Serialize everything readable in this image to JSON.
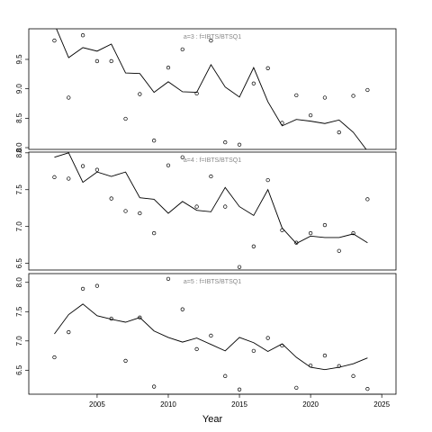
{
  "chart_data": [
    {
      "type": "line",
      "title": "a=3 : f=IBTS/BTSQ1",
      "x": [
        2002,
        2003,
        2004,
        2005,
        2006,
        2007,
        2008,
        2009,
        2010,
        2011,
        2012,
        2013,
        2014,
        2015,
        2016,
        2017,
        2018,
        2019,
        2020,
        2021,
        2022,
        2023,
        2024
      ],
      "xlim": [
        2000.2,
        2026
      ],
      "ylim": [
        7.97,
        10.02
      ],
      "yticks": [
        {
          "value": 8,
          "label": "8.0"
        },
        8.5,
        {
          "value": 9,
          "label": "9.0"
        },
        9.5
      ],
      "series": [
        {
          "style": "points",
          "color": "#000000",
          "values": [
            9.82,
            8.85,
            9.91,
            9.47,
            9.47,
            8.49,
            8.91,
            8.12,
            9.36,
            9.67,
            8.92,
            9.82,
            8.09,
            8.05,
            9.09,
            9.35,
            8.42,
            8.89,
            8.55,
            8.85,
            8.26,
            8.88,
            8.98
          ]
        },
        {
          "style": "line",
          "color": "#000000",
          "values": [
            10.1,
            9.53,
            9.7,
            9.64,
            9.76,
            9.27,
            9.26,
            8.94,
            9.12,
            8.95,
            8.94,
            9.41,
            9.03,
            8.86,
            9.36,
            8.78,
            8.37,
            8.48,
            8.45,
            8.41,
            8.47,
            8.26,
            7.94
          ]
        }
      ]
    },
    {
      "type": "line",
      "title": "a=4 : f=IBTS/BTSQ1",
      "x": [
        2002,
        2003,
        2004,
        2005,
        2006,
        2007,
        2008,
        2009,
        2010,
        2011,
        2012,
        2013,
        2014,
        2015,
        2016,
        2017,
        2018,
        2019,
        2020,
        2021,
        2022,
        2023,
        2024
      ],
      "xlim": [
        2000.2,
        2026
      ],
      "ylim": [
        6.41,
        8.01
      ],
      "yticks": [
        6.5,
        {
          "value": 7,
          "label": "7.0"
        },
        7.5,
        {
          "value": 8,
          "label": "8.0"
        }
      ],
      "series": [
        {
          "style": "points",
          "color": "#000000",
          "values": [
            7.67,
            7.65,
            7.82,
            7.77,
            7.38,
            7.21,
            7.18,
            6.91,
            7.83,
            7.94,
            7.27,
            7.68,
            7.27,
            6.45,
            6.73,
            7.63,
            6.95,
            6.78,
            6.91,
            7.02,
            6.67,
            6.91,
            7.37
          ]
        },
        {
          "style": "line",
          "color": "#000000",
          "values": [
            7.94,
            8.0,
            7.6,
            7.74,
            7.68,
            7.74,
            7.39,
            7.37,
            7.18,
            7.34,
            7.22,
            7.2,
            7.53,
            7.27,
            7.15,
            7.5,
            6.98,
            6.77,
            6.87,
            6.85,
            6.85,
            6.9,
            6.78
          ]
        }
      ]
    },
    {
      "type": "line",
      "title": "a=5 : f=IBTS/BTSQ1",
      "x": [
        2002,
        2003,
        2004,
        2005,
        2006,
        2007,
        2008,
        2009,
        2010,
        2011,
        2012,
        2013,
        2014,
        2015,
        2016,
        2017,
        2018,
        2019,
        2020,
        2021,
        2022,
        2023,
        2024
      ],
      "xlim": [
        2000.2,
        2026
      ],
      "xticks": [
        2005,
        2010,
        2015,
        2020,
        2025
      ],
      "xlabel": "Year",
      "ylim": [
        6.09,
        8.15
      ],
      "yticks": [
        6.5,
        {
          "value": 7,
          "label": "7.0"
        },
        7.5,
        {
          "value": 8,
          "label": "8.0"
        }
      ],
      "series": [
        {
          "style": "points",
          "color": "#000000",
          "values": [
            6.72,
            7.15,
            7.89,
            7.94,
            7.38,
            6.66,
            7.4,
            6.22,
            8.06,
            7.54,
            6.86,
            7.09,
            6.4,
            6.17,
            6.83,
            7.05,
            6.92,
            6.2,
            6.58,
            6.75,
            6.57,
            6.4,
            6.18
          ]
        },
        {
          "style": "line",
          "color": "#000000",
          "values": [
            7.12,
            7.45,
            7.63,
            7.43,
            7.37,
            7.32,
            7.4,
            7.17,
            7.06,
            6.98,
            7.05,
            6.94,
            6.83,
            7.06,
            6.97,
            6.82,
            6.95,
            6.72,
            6.55,
            6.51,
            6.55,
            6.61,
            6.71
          ]
        }
      ]
    }
  ]
}
